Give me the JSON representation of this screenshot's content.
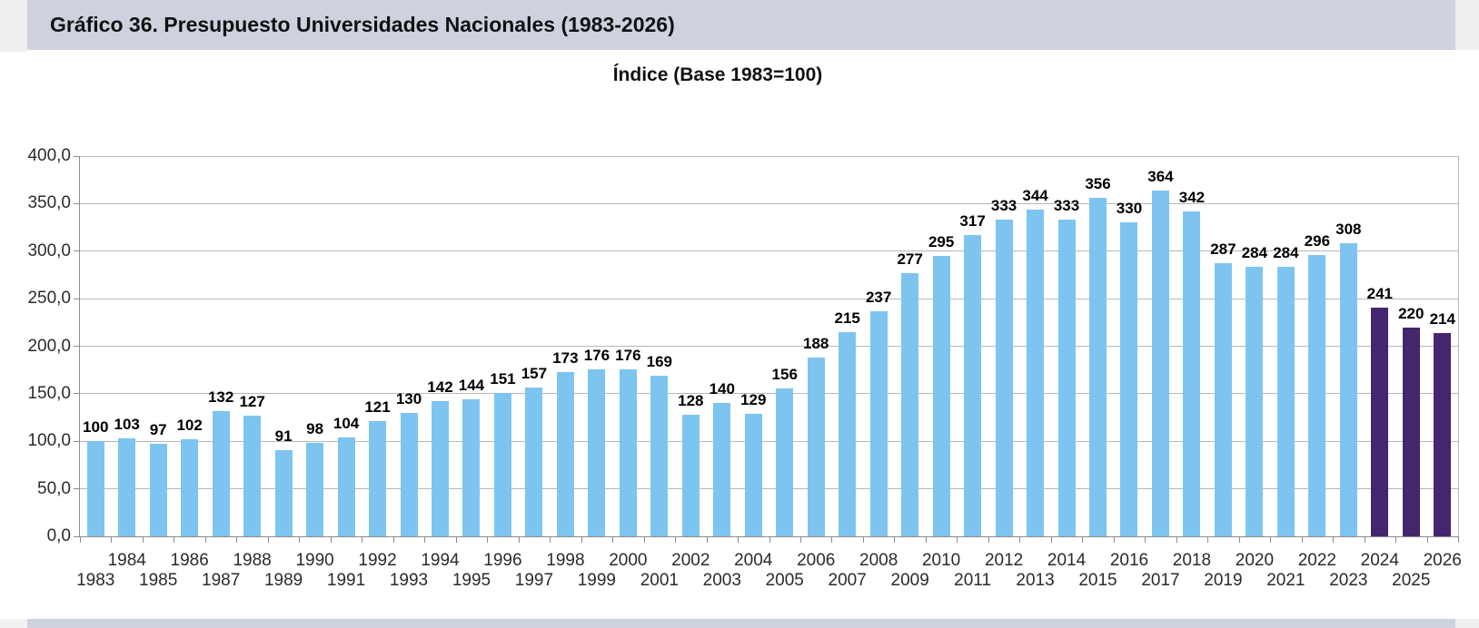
{
  "page": {
    "header": {
      "title": "Gráfico 36. Presupuesto Universidades Nacionales (1983-2026)",
      "band_color": "#ced2df"
    }
  },
  "chart_data": {
    "type": "bar",
    "title": "Índice (Base 1983=100)",
    "categories": [
      1983,
      1984,
      1985,
      1986,
      1987,
      1988,
      1989,
      1990,
      1991,
      1992,
      1993,
      1994,
      1995,
      1996,
      1997,
      1998,
      1999,
      2000,
      2001,
      2002,
      2003,
      2004,
      2005,
      2006,
      2007,
      2008,
      2009,
      2010,
      2011,
      2012,
      2013,
      2014,
      2015,
      2016,
      2017,
      2018,
      2019,
      2020,
      2021,
      2022,
      2023,
      2024,
      2025,
      2026
    ],
    "values": [
      100,
      103,
      97,
      102,
      132,
      127,
      91,
      98,
      104,
      121,
      130,
      142,
      144,
      151,
      157,
      173,
      176,
      176,
      169,
      128,
      140,
      129,
      156,
      188,
      215,
      237,
      277,
      295,
      317,
      333,
      344,
      333,
      356,
      330,
      364,
      342,
      287,
      284,
      284,
      296,
      308,
      241,
      220,
      214
    ],
    "projection_years": [
      2024,
      2025,
      2026
    ],
    "colors": {
      "bar_default": "#7dc5f0",
      "bar_projection": "#44266f",
      "gridline": "#b8b8b8",
      "axis": "#8c8c8c"
    },
    "ylim": [
      0,
      400
    ],
    "ytick_step": 50,
    "ytick_labels": [
      "0,0",
      "50,0",
      "100,0",
      "150,0",
      "200,0",
      "250,0",
      "300,0",
      "350,0",
      "400,0"
    ],
    "grid": true,
    "value_labels": true,
    "legend": "none",
    "x_axis_layout": "two-row staggered year labels (even years upper row, odd years lower row)"
  }
}
